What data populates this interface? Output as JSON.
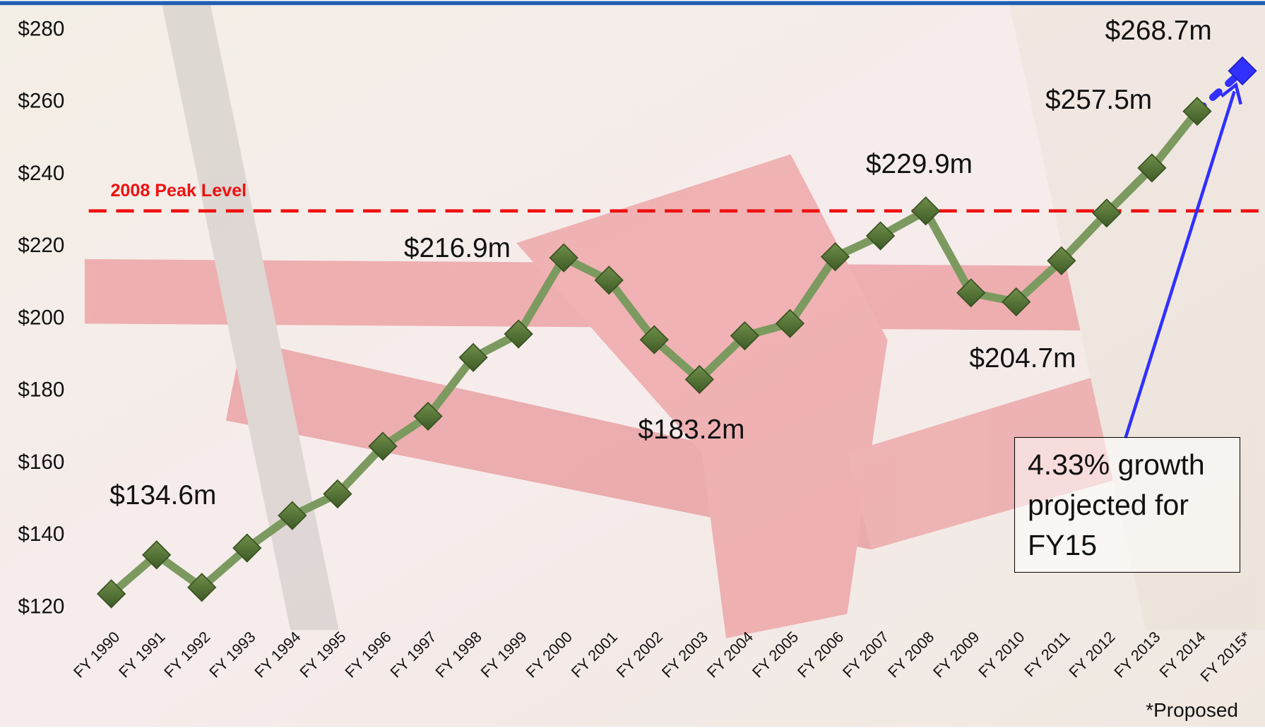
{
  "chart_data": {
    "type": "line",
    "categories": [
      "FY 1990",
      "FY 1991",
      "FY 1992",
      "FY 1993",
      "FY 1994",
      "FY 1995",
      "FY 1996",
      "FY 1997",
      "FY 1998",
      "FY 1999",
      "FY 2000",
      "FY 2001",
      "FY 2002",
      "FY 2003",
      "FY 2004",
      "FY 2005",
      "FY 2006",
      "FY 2007",
      "FY 2008",
      "FY 2009",
      "FY 2010",
      "FY 2011",
      "FY 2012",
      "FY 2013",
      "FY 2014",
      "FY 2015*"
    ],
    "series": [
      {
        "color": "#7c9a5f",
        "marker_color": "#4f6b33",
        "values": [
          123.8,
          134.6,
          125.6,
          136.5,
          145.5,
          151.5,
          164.7,
          173,
          189.3,
          195.8,
          216.9,
          210.7,
          194.2,
          183.2,
          195.3,
          198.7,
          217.2,
          223,
          229.9,
          207.2,
          204.7,
          216.1,
          229.3,
          241.8,
          257.5,
          null
        ],
        "value_labels": [
          null,
          "$134.6m",
          null,
          null,
          null,
          null,
          null,
          null,
          null,
          null,
          "$216.9m",
          null,
          null,
          "$183.2m",
          null,
          null,
          null,
          null,
          "$229.9m",
          null,
          "$204.7m",
          null,
          null,
          null,
          "$257.5m",
          null
        ]
      },
      {
        "color": "#3030ff",
        "marker_color": "#3030ff",
        "dashed": true,
        "values": [
          null,
          null,
          null,
          null,
          null,
          null,
          null,
          null,
          null,
          null,
          null,
          null,
          null,
          null,
          null,
          null,
          null,
          null,
          null,
          null,
          null,
          null,
          null,
          null,
          257.5,
          268.7
        ],
        "value_labels": [
          null,
          null,
          null,
          null,
          null,
          null,
          null,
          null,
          null,
          null,
          null,
          null,
          null,
          null,
          null,
          null,
          null,
          null,
          null,
          null,
          null,
          null,
          null,
          null,
          null,
          "$268.7m"
        ]
      }
    ],
    "ylim": [
      120,
      280
    ],
    "yticks": [
      {
        "value": 120,
        "label": "$120"
      },
      {
        "value": 140,
        "label": "$140"
      },
      {
        "value": 160,
        "label": "$160"
      },
      {
        "value": 180,
        "label": "$180"
      },
      {
        "value": 200,
        "label": "$200"
      },
      {
        "value": 220,
        "label": "$220"
      },
      {
        "value": 240,
        "label": "$240"
      },
      {
        "value": 260,
        "label": "$260"
      },
      {
        "value": 280,
        "label": "$280"
      }
    ],
    "reference_line": {
      "label": "2008 Peak Level",
      "value": 229.9,
      "color": "#ee1111"
    },
    "annotation": "4.33% growth projected for FY15",
    "footnote": "*Proposed"
  }
}
